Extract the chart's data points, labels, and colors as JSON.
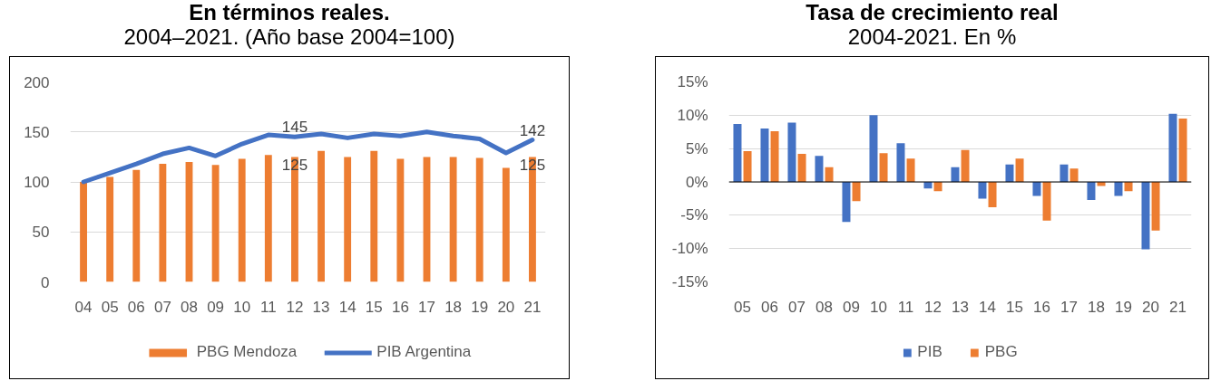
{
  "chart_data": [
    {
      "type": "bar",
      "title": "En términos reales.",
      "subtitle": "2004–2021. (Año base 2004=100)",
      "categories": [
        "04",
        "05",
        "06",
        "07",
        "08",
        "09",
        "10",
        "11",
        "12",
        "13",
        "14",
        "15",
        "16",
        "17",
        "18",
        "19",
        "20",
        "21"
      ],
      "series": [
        {
          "name": "PBG Mendoza",
          "color": "#ed7d31",
          "values": [
            100,
            105,
            112,
            118,
            120,
            117,
            123,
            127,
            125,
            131,
            125,
            131,
            123,
            125,
            125,
            124,
            114,
            125
          ],
          "value_labels": [
            null,
            null,
            null,
            null,
            null,
            null,
            null,
            null,
            "125",
            null,
            null,
            null,
            null,
            null,
            null,
            null,
            null,
            "125"
          ]
        },
        {
          "name": "PIB Argentina",
          "type": "line",
          "color": "#4472c4",
          "values": [
            100,
            109,
            118,
            128,
            134,
            126,
            138,
            147,
            145,
            148,
            144,
            148,
            146,
            150,
            146,
            143,
            129,
            142
          ],
          "value_labels": [
            null,
            null,
            null,
            null,
            null,
            null,
            null,
            null,
            "145",
            null,
            null,
            null,
            null,
            null,
            null,
            null,
            null,
            "142"
          ]
        }
      ],
      "ylim": [
        0,
        200
      ],
      "yticks": [
        0,
        50,
        100,
        150,
        200
      ],
      "grid": "y",
      "legend": "bottom"
    },
    {
      "type": "bar",
      "title": "Tasa de crecimiento real",
      "subtitle": "2004-2021. En %",
      "categories": [
        "05",
        "06",
        "07",
        "08",
        "09",
        "10",
        "11",
        "12",
        "13",
        "14",
        "15",
        "16",
        "17",
        "18",
        "19",
        "20",
        "21"
      ],
      "series": [
        {
          "name": "PIB",
          "color": "#4472c4",
          "values": [
            8.7,
            8.0,
            8.9,
            3.9,
            -6.0,
            10.0,
            5.8,
            -1.0,
            2.2,
            -2.5,
            2.6,
            -2.1,
            2.6,
            -2.7,
            -2.1,
            -10.1,
            10.2
          ]
        },
        {
          "name": "PBG",
          "color": "#ed7d31",
          "values": [
            4.6,
            7.6,
            4.2,
            2.2,
            -2.9,
            4.3,
            3.5,
            -1.4,
            4.8,
            -3.8,
            3.5,
            -5.8,
            2.0,
            -0.6,
            -1.4,
            -7.3,
            9.5
          ]
        }
      ],
      "ylim": [
        -15,
        15
      ],
      "yticks": [
        {
          "value": -15,
          "label": "-15%"
        },
        {
          "value": -10,
          "label": "-10%"
        },
        {
          "value": -5,
          "label": "-5%"
        },
        {
          "value": 0,
          "label": "0%"
        },
        {
          "value": 5,
          "label": "5%"
        },
        {
          "value": 10,
          "label": "10%"
        },
        {
          "value": 15,
          "label": "15%"
        }
      ],
      "grid": "y",
      "legend": "bottom"
    }
  ]
}
